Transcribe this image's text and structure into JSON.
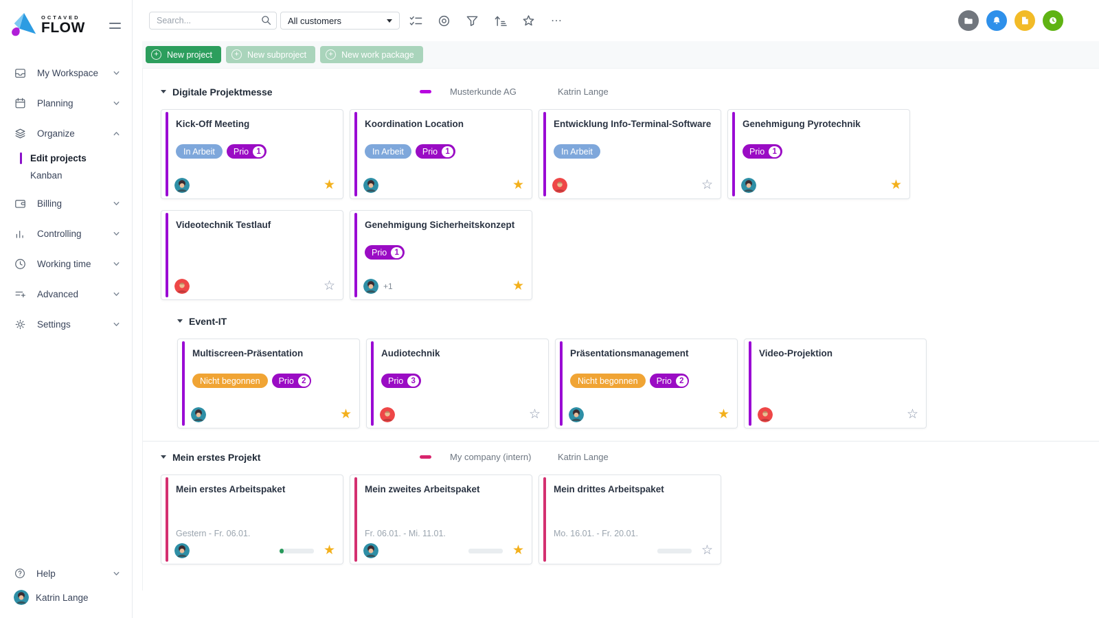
{
  "brand": {
    "top": "OCTAVED",
    "name": "FLOW"
  },
  "colors": {
    "accent_purple": "#9a0bd4",
    "accent_pink": "#d43070",
    "status_in_progress": "#7ea7db",
    "status_not_started": "#f0a434",
    "priority": "#9a0cc4",
    "primary_button": "#2c9e5d",
    "favorite_star": "#f3b01c"
  },
  "glyphs": {
    "star_filled": "★",
    "star_outline": "☆",
    "more": "…"
  },
  "labels": {
    "prio": "Prio"
  },
  "sidebar": {
    "my_workspace": "My Workspace",
    "planning": "Planning",
    "organize": "Organize",
    "edit_projects": "Edit projects",
    "kanban": "Kanban",
    "billing": "Billing",
    "controlling": "Controlling",
    "working_time": "Working time",
    "advanced": "Advanced",
    "settings": "Settings",
    "help": "Help",
    "user": "Katrin Lange"
  },
  "toolbar": {
    "search_placeholder": "Search...",
    "customer_filter_value": "All customers"
  },
  "actions": {
    "new_project": "New project",
    "new_subproject": "New subproject",
    "new_work_package": "New work package"
  },
  "groups": [
    {
      "title": "Digitale Projektmesse",
      "customer": "Musterkunde AG",
      "owner": "Katrin Lange",
      "cards": [
        {
          "title": "Kick-Off Meeting",
          "status": "In Arbeit",
          "prio": "1"
        },
        {
          "title": "Koordination Location",
          "status": "In Arbeit",
          "prio": "1"
        },
        {
          "title": "Entwicklung Info-Terminal-Software",
          "status": "In Arbeit"
        },
        {
          "title": "Genehmigung Pyrotechnik",
          "prio": "1"
        },
        {
          "title": "Videotechnik Testlauf"
        },
        {
          "title": "Genehmigung Sicherheitskonzept",
          "prio": "1",
          "extra": "+1"
        }
      ]
    },
    {
      "title": "Event-IT",
      "cards": [
        {
          "title": "Multiscreen-Präsentation",
          "status": "Nicht begonnen",
          "prio": "2"
        },
        {
          "title": "Audiotechnik",
          "prio": "3"
        },
        {
          "title": "Präsentationsmanagement",
          "status": "Nicht begonnen",
          "prio": "2"
        },
        {
          "title": "Video-Projektion"
        }
      ]
    },
    {
      "title": "Mein erstes Projekt",
      "customer": "My company (intern)",
      "owner": "Katrin Lange",
      "cards": [
        {
          "title": "Mein erstes Arbeitspaket",
          "date": "Gestern - Fr. 06.01.",
          "progress": 12
        },
        {
          "title": "Mein zweites Arbeitspaket",
          "date": "Fr. 06.01. - Mi. 11.01.",
          "progress": 0
        },
        {
          "title": "Mein drittes Arbeitspaket",
          "date": "Mo. 16.01. - Fr. 20.01.",
          "progress": 0
        }
      ]
    }
  ]
}
